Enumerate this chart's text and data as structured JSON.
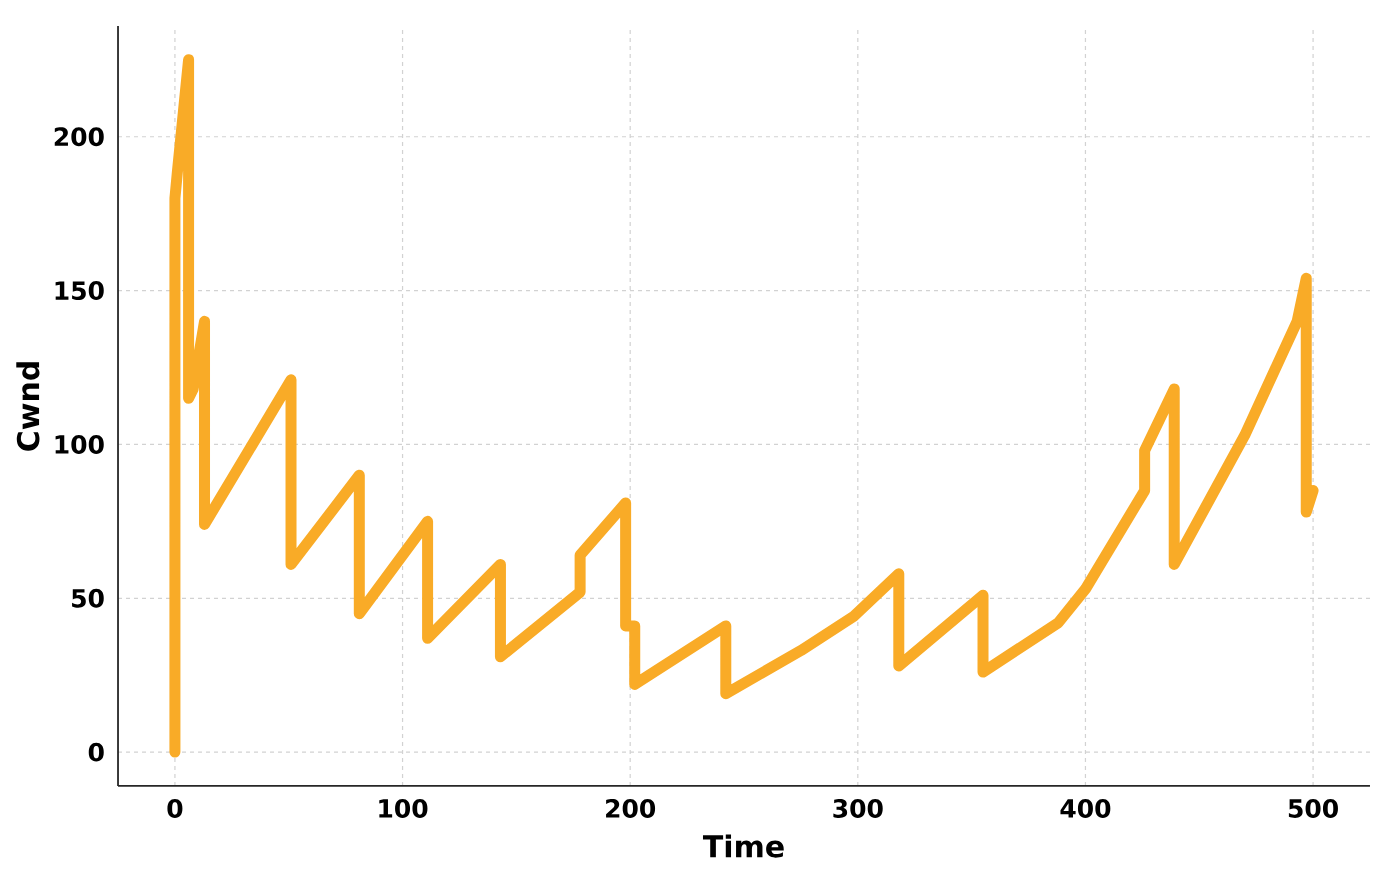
{
  "chart_data": {
    "type": "line",
    "xlabel": "Time",
    "ylabel": "Cwnd",
    "x": [
      0,
      0,
      1,
      6,
      6,
      8,
      13,
      13,
      51,
      51,
      81,
      81,
      111,
      111,
      143,
      143,
      178,
      178,
      198,
      198,
      202,
      202,
      242,
      242,
      275,
      298,
      318,
      318,
      355,
      355,
      388,
      400,
      426,
      426,
      439,
      439,
      470,
      493,
      497,
      497,
      500
    ],
    "series": [
      {
        "color": "#f9ab27",
        "values": [
          0,
          180,
          188,
          225,
          115,
          118,
          140,
          74,
          121,
          61,
          90,
          45,
          75,
          37,
          61,
          31,
          52,
          64,
          81,
          41,
          41,
          22,
          41,
          19,
          33,
          44,
          58,
          28,
          51,
          26,
          42,
          53,
          85,
          98,
          118,
          61,
          103,
          140,
          154,
          78,
          85
        ]
      }
    ],
    "xlim": [
      -25,
      525
    ],
    "ylim": [
      -11,
      236
    ],
    "xticks": [
      0,
      100,
      200,
      300,
      400,
      500
    ],
    "yticks": [
      0,
      50,
      100,
      150,
      200
    ],
    "grid": true
  }
}
